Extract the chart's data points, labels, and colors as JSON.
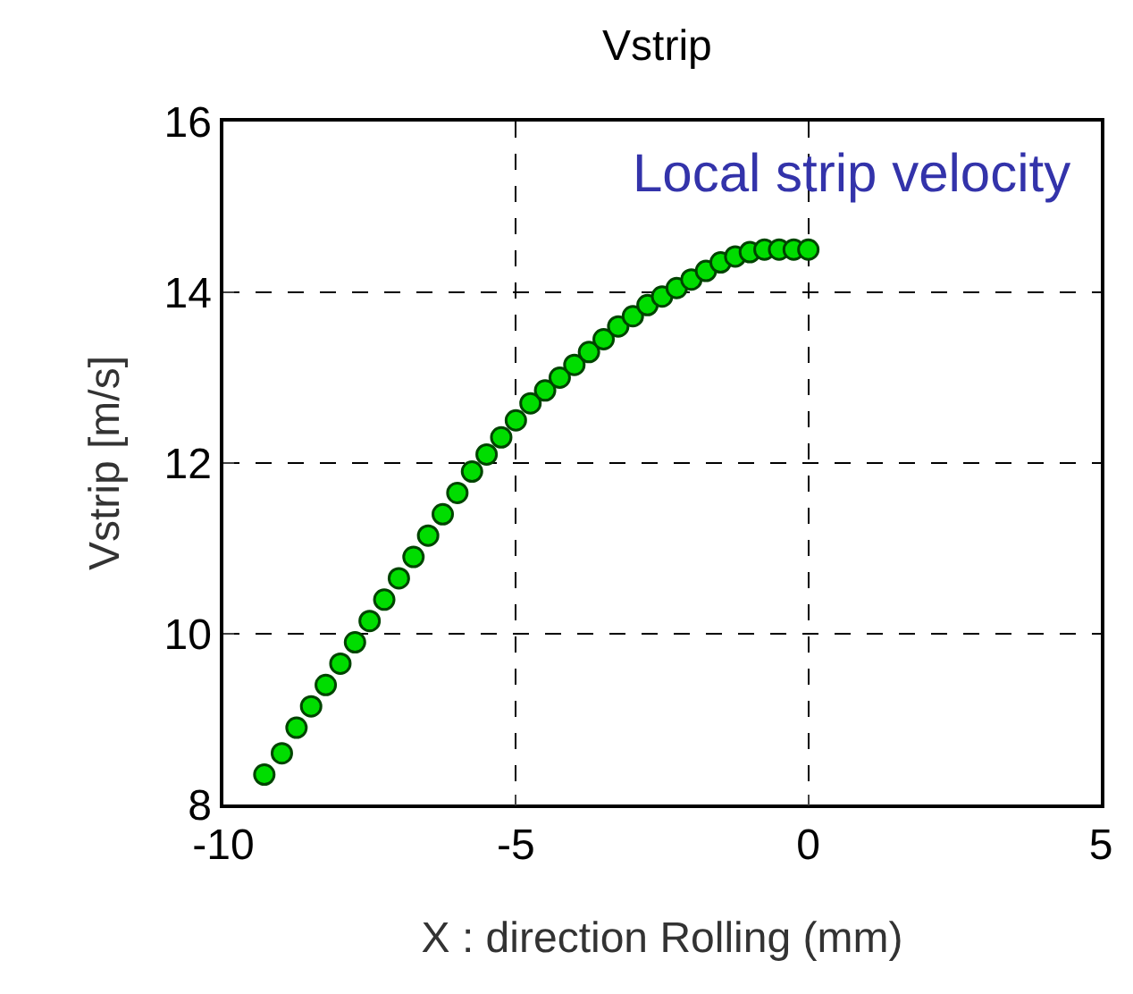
{
  "chart_data": {
    "type": "scatter",
    "title": "Vstrip",
    "xlabel": "X : direction Rolling (mm)",
    "ylabel": "Vstrip [m/s]",
    "annotations": [
      "Local strip velocity"
    ],
    "x": [
      -9.3,
      -9.0,
      -8.75,
      -8.5,
      -8.25,
      -8.0,
      -7.75,
      -7.5,
      -7.25,
      -7.0,
      -6.75,
      -6.5,
      -6.25,
      -6.0,
      -5.75,
      -5.5,
      -5.25,
      -5.0,
      -4.75,
      -4.5,
      -4.25,
      -4.0,
      -3.75,
      -3.5,
      -3.25,
      -3.0,
      -2.75,
      -2.5,
      -2.25,
      -2.0,
      -1.75,
      -1.5,
      -1.25,
      -1.0,
      -0.75,
      -0.5,
      -0.25,
      0
    ],
    "series": [
      {
        "color": "#00dd00",
        "values": [
          8.35,
          8.6,
          8.9,
          9.15,
          9.4,
          9.65,
          9.9,
          10.15,
          10.4,
          10.65,
          10.9,
          11.15,
          11.4,
          11.65,
          11.9,
          12.1,
          12.3,
          12.5,
          12.7,
          12.85,
          13.0,
          13.15,
          13.3,
          13.45,
          13.6,
          13.72,
          13.85,
          13.95,
          14.05,
          14.15,
          14.25,
          14.35,
          14.42,
          14.47,
          14.5,
          14.5,
          14.5,
          14.5
        ]
      }
    ],
    "xlim": [
      -10,
      5
    ],
    "xticks": [
      -10,
      -5,
      0,
      5
    ],
    "ylim": [
      8,
      16
    ],
    "yticks": [
      8,
      10,
      12,
      14,
      16
    ],
    "grid": true,
    "marker": "circle"
  }
}
